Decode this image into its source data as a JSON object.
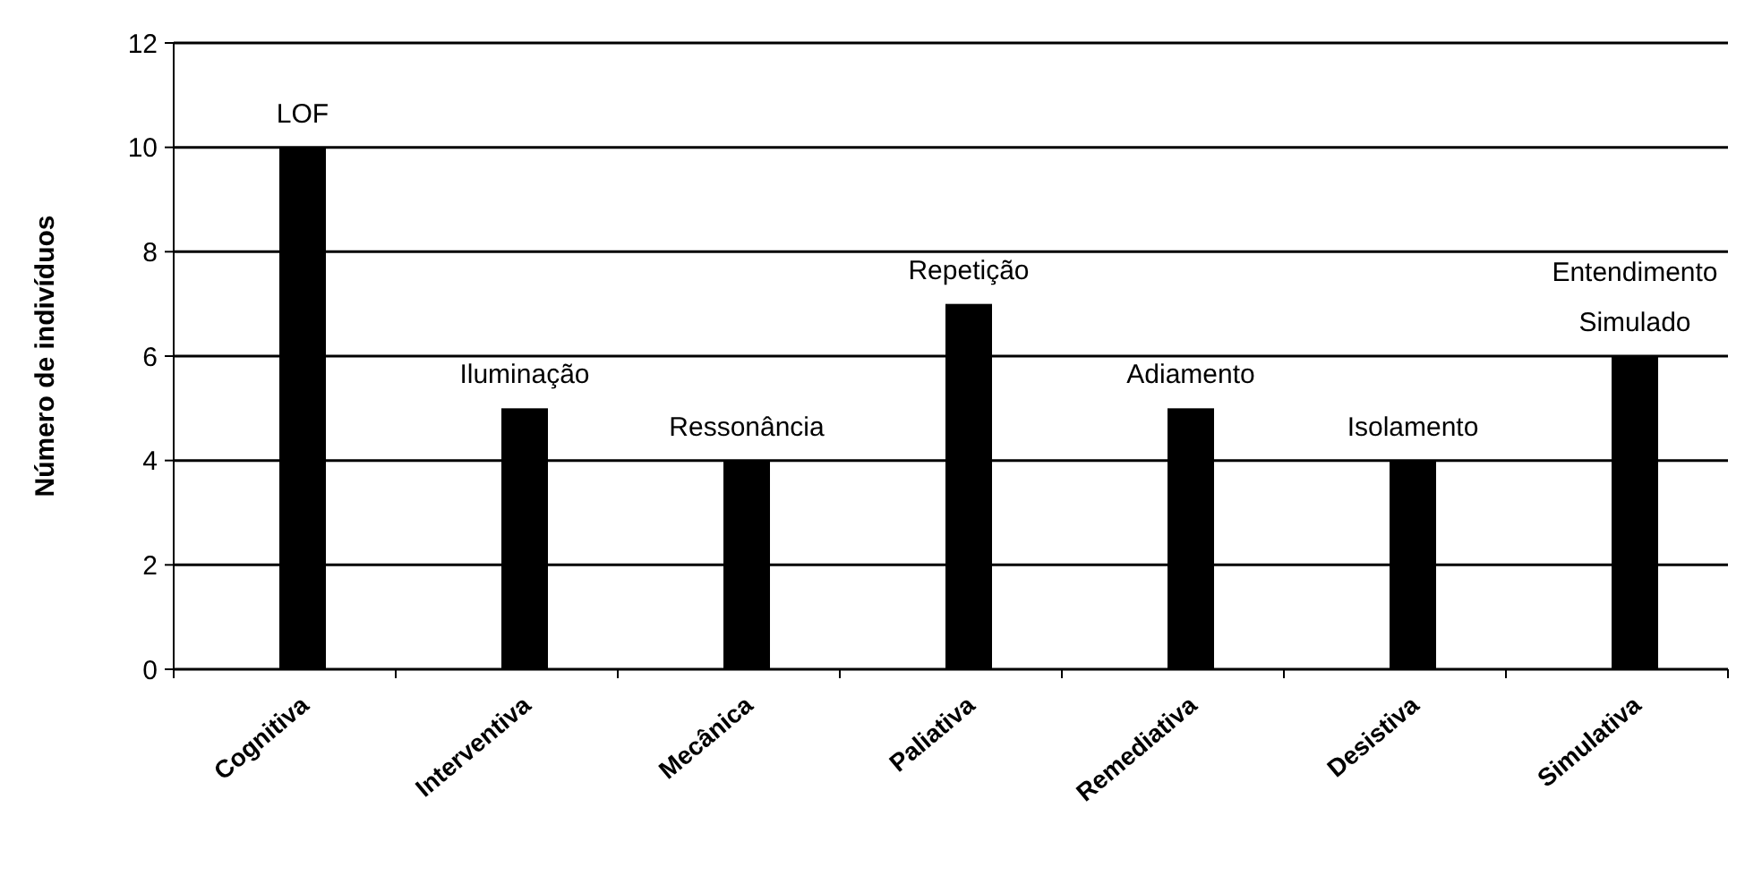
{
  "chart_data": {
    "type": "bar",
    "ylabel": "Número de indivíduos",
    "categories": [
      "Cognitiva",
      "Interventiva",
      "Mecânica",
      "Paliativa",
      "Remediativa",
      "Desistiva",
      "Simulativa"
    ],
    "values": [
      10,
      5,
      4,
      7,
      5,
      4,
      6
    ],
    "color": "#000000",
    "ylim": [
      0,
      12
    ],
    "yticks": [
      0,
      2,
      4,
      6,
      8,
      10,
      12
    ],
    "grid": "y",
    "annotations": [
      "LOF",
      "Iluminação",
      "Ressonância",
      "Repetição",
      "Adiamento",
      "Isolamento",
      "Entendimento\nSimulado"
    ]
  }
}
